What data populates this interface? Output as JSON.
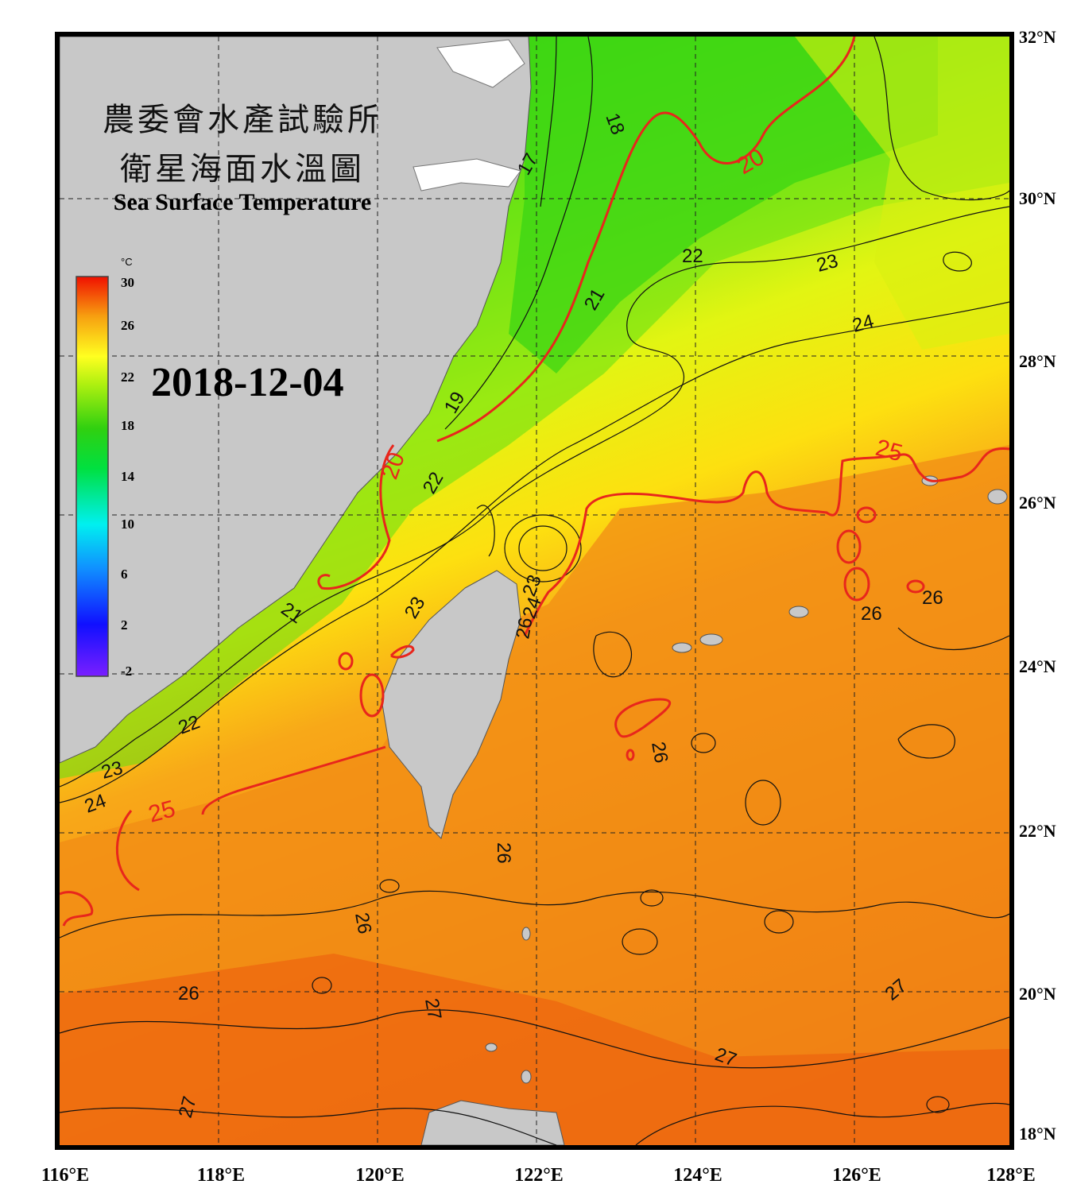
{
  "title": {
    "zh_line1": "農委會水產試驗所",
    "zh_line2": "衛星海面水溫圖",
    "en": "Sea Surface Temperature"
  },
  "date": "2018-12-04",
  "colorbar": {
    "unit": "°C",
    "ticks": [
      "30",
      "26",
      "22",
      "18",
      "14",
      "10",
      "6",
      "2",
      "-2"
    ]
  },
  "axes": {
    "lat_labels": [
      "32°N",
      "30°N",
      "28°N",
      "26°N",
      "24°N",
      "22°N",
      "20°N",
      "18°N"
    ],
    "lon_labels": [
      "116°E",
      "118°E",
      "120°E",
      "122°E",
      "124°E",
      "126°E",
      "128°E"
    ]
  },
  "contour_labels": {
    "red": [
      "20",
      "20",
      "25",
      "25"
    ],
    "black": [
      "18",
      "17",
      "19",
      "21",
      "21",
      "22",
      "22",
      "22",
      "23",
      "23",
      "23",
      "23",
      "24",
      "24",
      "24",
      "26",
      "26",
      "26",
      "26",
      "26",
      "26",
      "26",
      "27",
      "27",
      "27",
      "27"
    ]
  },
  "colors": {
    "land": "#c8c8c8",
    "frame": "#000000",
    "red_isotherm": "#e8261c",
    "warm": "#f07a10",
    "cool": "#37d10f"
  }
}
